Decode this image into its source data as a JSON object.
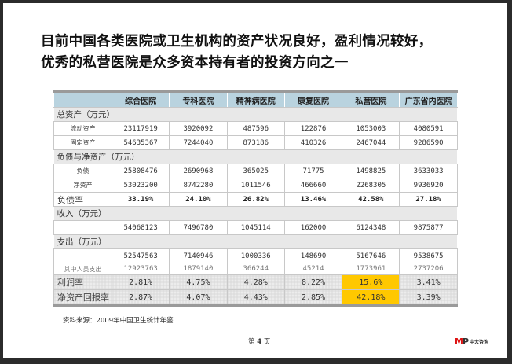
{
  "title": {
    "line1": "目前中国各类医院或卫生机构的资产状况良好，盈利情况较好，",
    "line2": "优秀的私营医院是众多资本持有者的投资方向之一"
  },
  "table": {
    "headers": [
      "",
      "综合医院",
      "专科医院",
      "精神病医院",
      "康复医院",
      "私营医院",
      "广东省内医院"
    ],
    "sections": {
      "assets": "总资产（万元）",
      "liab": "负债与净资产（万元）",
      "income": "收入（万元）",
      "expense": "支出（万元）"
    },
    "rows": {
      "current_assets": {
        "label": "流动资产",
        "values": [
          "23117919",
          "3920092",
          "487596",
          "122876",
          "1053003",
          "4080591"
        ]
      },
      "fixed_assets": {
        "label": "固定资产",
        "values": [
          "54635367",
          "7244040",
          "873186",
          "410326",
          "2467044",
          "9286590"
        ]
      },
      "liabilities": {
        "label": "负债",
        "values": [
          "25808476",
          "2690968",
          "365025",
          "71775",
          "1498825",
          "3633033"
        ]
      },
      "net_assets": {
        "label": "净资产",
        "values": [
          "53023200",
          "8742280",
          "1011546",
          "466660",
          "2268305",
          "9936920"
        ]
      },
      "debt_ratio": {
        "label": "负债率",
        "values": [
          "33.19%",
          "24.10%",
          "26.82%",
          "13.46%",
          "42.58%",
          "27.18%"
        ]
      },
      "income": {
        "label": "",
        "values": [
          "54068123",
          "7496780",
          "1045114",
          "162000",
          "6124348",
          "9875877"
        ]
      },
      "expense": {
        "label": "",
        "values": [
          "52547563",
          "7140946",
          "1000336",
          "148690",
          "5167646",
          "9538675"
        ]
      },
      "staff_expense": {
        "label": "其中人员支出",
        "values": [
          "12923763",
          "1879140",
          "366244",
          "45214",
          "1773961",
          "2737206"
        ]
      },
      "profit_rate": {
        "label": "利润率",
        "values": [
          "2.81%",
          "4.75%",
          "4.28%",
          "8.22%",
          "15.6%",
          "3.41%"
        ]
      },
      "roe": {
        "label": "净资产回报率",
        "values": [
          "2.87%",
          "4.07%",
          "4.43%",
          "2.85%",
          "42.18%",
          "3.39%"
        ]
      }
    },
    "highlight_color": "#ffc800",
    "header_color": "#b9d3df"
  },
  "footer": {
    "source": "资料来源：2009年中国卫生统计年鉴",
    "page_prefix": "第",
    "page_number": "4",
    "page_suffix": "页",
    "logo_mark_m": "M",
    "logo_mark_p": "P",
    "logo_text": "中大咨询"
  }
}
